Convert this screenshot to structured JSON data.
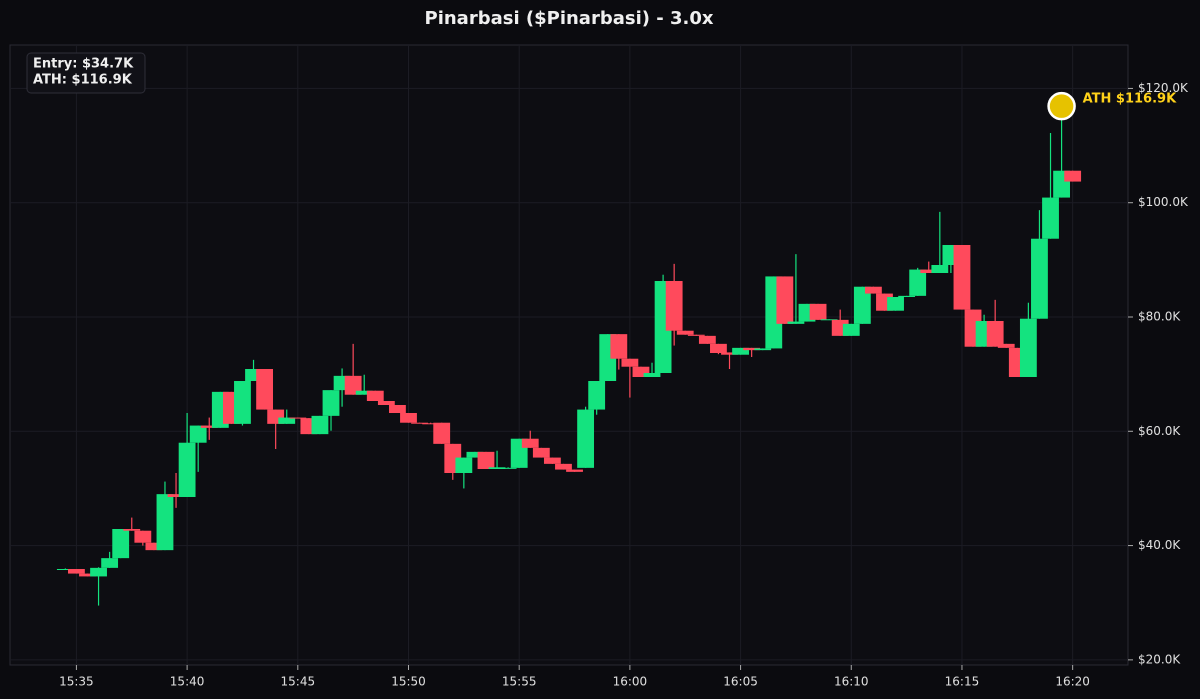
{
  "chart_data": {
    "type": "candlestick",
    "title": "Pinarbasi ($Pinarbasi) - 3.0x",
    "info": [
      "Entry: $34.7K",
      "ATH: $116.9K"
    ],
    "annotation": {
      "text": "ATH $116.9K",
      "index": 90
    },
    "up_color": "#14e37f",
    "down_color": "#ff4a5c",
    "grid": true,
    "xlim": [
      932,
      982.5
    ],
    "xticks": [
      {
        "value": 935,
        "label": "15:35"
      },
      {
        "value": 940,
        "label": "15:40"
      },
      {
        "value": 945,
        "label": "15:45"
      },
      {
        "value": 950,
        "label": "15:50"
      },
      {
        "value": 955,
        "label": "15:55"
      },
      {
        "value": 960,
        "label": "16:00"
      },
      {
        "value": 965,
        "label": "16:05"
      },
      {
        "value": 970,
        "label": "16:10"
      },
      {
        "value": 975,
        "label": "16:15"
      },
      {
        "value": 980,
        "label": "16:20"
      }
    ],
    "ylim": [
      19100,
      127600
    ],
    "yticks": [
      {
        "value": 20000,
        "label": "$20.0K"
      },
      {
        "value": 40000,
        "label": "$40.0K"
      },
      {
        "value": 60000,
        "label": "$60.0K"
      },
      {
        "value": 80000,
        "label": "$80.0K"
      },
      {
        "value": 100000,
        "label": "$100.0K"
      },
      {
        "value": 120000,
        "label": "$120.0K"
      }
    ],
    "x": [
      934.5,
      935,
      935.5,
      936,
      936.5,
      937,
      937.5,
      938,
      938.5,
      939,
      939.5,
      940,
      940.5,
      941,
      941.5,
      942,
      942.5,
      943,
      943.5,
      944,
      944.5,
      945,
      945.5,
      946,
      946.5,
      947,
      947.5,
      948,
      948.5,
      949,
      949.5,
      950,
      950.5,
      951,
      951.5,
      952,
      952.5,
      953,
      953.5,
      954,
      954.5,
      955,
      955.5,
      956,
      956.5,
      957,
      957.5,
      958,
      958.5,
      959,
      959.5,
      960,
      960.5,
      961,
      961.5,
      962,
      962.5,
      963,
      963.5,
      964,
      964.5,
      965,
      965.5,
      966,
      966.5,
      967,
      967.5,
      968,
      968.5,
      969,
      969.5,
      970,
      970.5,
      971,
      971.5,
      972,
      972.5,
      973,
      973.5,
      974,
      974.5,
      975,
      975.5,
      976,
      976.5,
      977,
      977.5,
      978,
      978.5,
      979,
      979.5,
      980
    ],
    "open": [
      35900,
      35900,
      35100,
      34600,
      36100,
      37800,
      42900,
      42600,
      40500,
      39200,
      49000,
      48500,
      58000,
      61000,
      60600,
      66900,
      61300,
      68800,
      70900,
      63800,
      61300,
      62400,
      62300,
      59500,
      62700,
      67200,
      69700,
      66400,
      67100,
      65300,
      64600,
      63200,
      61500,
      61400,
      61500,
      57800,
      52700,
      55400,
      56400,
      53400,
      53600,
      53600,
      58700,
      57100,
      55400,
      54300,
      53300,
      53600,
      63800,
      68800,
      77000,
      72700,
      71300,
      69500,
      70200,
      86300,
      77600,
      76900,
      76700,
      75300,
      73800,
      73400,
      74600,
      74200,
      74500,
      87100,
      78800,
      79200,
      82300,
      79500,
      79500,
      76700,
      78800,
      85300,
      84100,
      81100,
      83500,
      83700,
      88300,
      87700,
      89100,
      92600,
      81300,
      74800,
      79300,
      75300,
      74600,
      69500,
      79700,
      93700,
      100900,
      105600
    ],
    "high": [
      36000,
      35900,
      35100,
      36200,
      38900,
      42900,
      44900,
      42600,
      40500,
      51200,
      52700,
      63200,
      61000,
      62400,
      66900,
      66900,
      68800,
      72500,
      70900,
      63800,
      63800,
      62400,
      62300,
      62700,
      67200,
      71000,
      75300,
      69900,
      67100,
      65300,
      64600,
      63200,
      61500,
      61500,
      61500,
      57800,
      55400,
      56400,
      56400,
      56600,
      53700,
      58700,
      60100,
      57100,
      55400,
      54300,
      53300,
      64300,
      68800,
      77000,
      77000,
      72700,
      71300,
      72000,
      87400,
      89300,
      77600,
      76900,
      76700,
      75300,
      73800,
      74600,
      74600,
      74500,
      87100,
      87100,
      91000,
      82300,
      82300,
      79600,
      81300,
      78800,
      85300,
      85300,
      84100,
      83500,
      83700,
      88600,
      89700,
      98400,
      92600,
      92600,
      81300,
      80400,
      83000,
      75300,
      74600,
      82500,
      98700,
      112200,
      116900,
      105600
    ],
    "low": [
      35800,
      35100,
      34600,
      29500,
      36100,
      37800,
      42600,
      40000,
      39200,
      39200,
      46600,
      48500,
      52900,
      58500,
      60600,
      61300,
      61000,
      68800,
      63800,
      56900,
      61300,
      62300,
      59500,
      59500,
      60100,
      64300,
      66400,
      66400,
      65300,
      64600,
      63200,
      61500,
      61400,
      61300,
      57800,
      51500,
      50000,
      55400,
      53400,
      53400,
      53500,
      53600,
      57100,
      55400,
      54300,
      53300,
      52900,
      53600,
      62900,
      68800,
      70800,
      65900,
      69500,
      69500,
      70200,
      75000,
      76900,
      76700,
      75300,
      73500,
      70900,
      73400,
      73000,
      74200,
      74500,
      78800,
      78800,
      79200,
      79500,
      79500,
      76700,
      76700,
      78800,
      84100,
      81100,
      81100,
      83500,
      83700,
      87700,
      87700,
      87700,
      81300,
      74800,
      74800,
      74800,
      74600,
      69500,
      69500,
      79700,
      93700,
      100900,
      103700
    ],
    "close": [
      35900,
      35100,
      34600,
      36100,
      37800,
      42900,
      42600,
      40500,
      39200,
      49000,
      48500,
      58000,
      61000,
      60600,
      66900,
      61300,
      68800,
      70900,
      63800,
      61300,
      62400,
      62300,
      59500,
      62700,
      67200,
      69700,
      66400,
      67100,
      65300,
      64600,
      63200,
      61500,
      61400,
      61300,
      57800,
      52700,
      55400,
      56400,
      53400,
      53700,
      53600,
      58700,
      57100,
      55400,
      54300,
      53300,
      52900,
      63800,
      68800,
      77000,
      72700,
      71300,
      69500,
      70200,
      86300,
      77600,
      76900,
      76700,
      75300,
      73700,
      73400,
      74600,
      74200,
      74500,
      87100,
      78800,
      79200,
      82300,
      79500,
      79600,
      76700,
      78800,
      85300,
      84100,
      81100,
      83500,
      83700,
      88300,
      87700,
      89100,
      92600,
      81300,
      74800,
      79300,
      74800,
      74600,
      69500,
      79700,
      93700,
      100900,
      105600,
      103700
    ]
  }
}
